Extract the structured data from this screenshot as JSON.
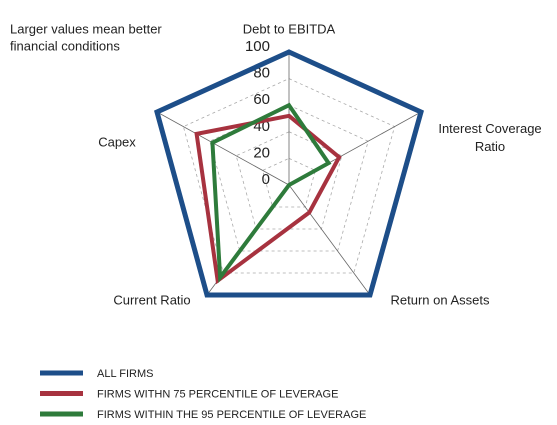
{
  "chart_data": {
    "type": "radar",
    "annotation": [
      "Larger values mean better",
      "financial conditions"
    ],
    "categories": [
      "Debt to EBITDA",
      "Interest Coverage Ratio",
      "Return on Assets",
      "Current Ratio",
      "Capex"
    ],
    "rlim": [
      0,
      100
    ],
    "rticks": [
      0,
      20,
      40,
      60,
      80,
      100
    ],
    "grid": true,
    "legend": "bottom-left",
    "series": [
      {
        "name": "ALL FIRMS",
        "color": "#1d4e89",
        "values": [
          100,
          100,
          100,
          100,
          100
        ]
      },
      {
        "name": "FIRMS WITHN 75 PERCENTILE OF LEVERAGE",
        "color": "#a7323f",
        "values": [
          52,
          38,
          25,
          87,
          70
        ]
      },
      {
        "name": "FIRMS WITHIN THE 95 PERCENTILE OF LEVERAGE",
        "color": "#2e7b3b",
        "values": [
          60,
          30,
          0,
          84,
          58
        ]
      }
    ]
  }
}
